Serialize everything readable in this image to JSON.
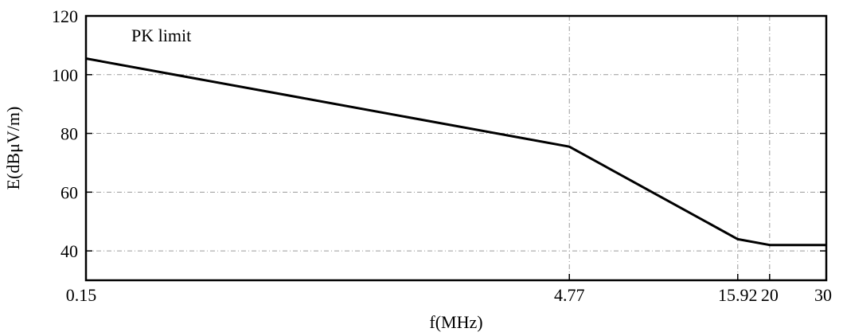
{
  "chart_data": {
    "type": "line",
    "title": "",
    "xlabel": "f(MHz)",
    "ylabel": "E(dBμV/m)",
    "x_scale": "log",
    "xlim": [
      0.15,
      30
    ],
    "ylim": [
      30,
      120
    ],
    "x_ticks": [
      0.15,
      4.77,
      15.92,
      20,
      30
    ],
    "x_tick_labels": [
      "0.15",
      "4.77",
      "15.92",
      "20",
      "30"
    ],
    "y_ticks": [
      40,
      60,
      80,
      100,
      120
    ],
    "y_tick_labels": [
      "40",
      "60",
      "80",
      "100",
      "120"
    ],
    "grid": true,
    "annotation": "PK limit",
    "series": [
      {
        "name": "",
        "x": [
          0.15,
          4.77,
          15.92,
          20,
          30
        ],
        "y": [
          105.5,
          75.5,
          44,
          42,
          42
        ]
      }
    ]
  }
}
